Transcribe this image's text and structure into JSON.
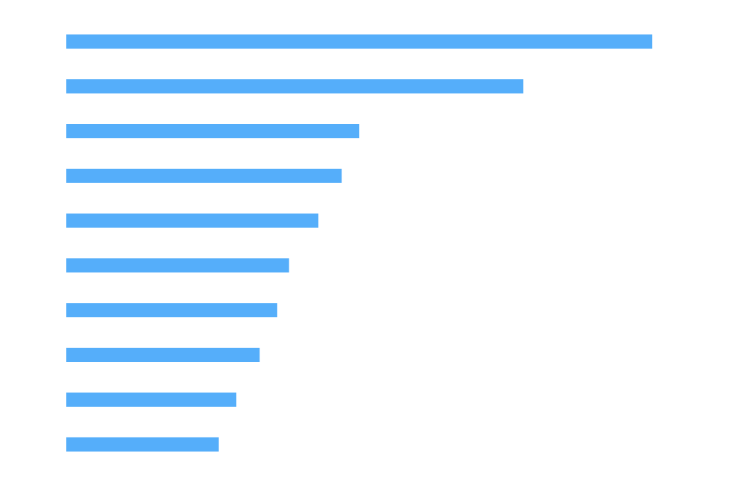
{
  "chart_data": {
    "type": "barh",
    "categories": [
      null,
      null,
      null,
      null,
      null,
      null,
      null,
      null,
      null,
      null
    ],
    "values": [
      100,
      78,
      50,
      47,
      43,
      38,
      36,
      33,
      29,
      26
    ],
    "color": "#55aefa",
    "xlim": [
      0,
      100
    ],
    "grid": false
  }
}
